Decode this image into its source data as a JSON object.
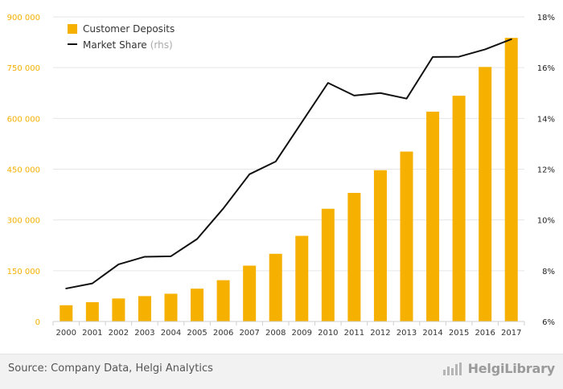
{
  "chart_data": {
    "type": "bar",
    "categories": [
      "2000",
      "2001",
      "2002",
      "2003",
      "2004",
      "2005",
      "2006",
      "2007",
      "2008",
      "2009",
      "2010",
      "2011",
      "2012",
      "2013",
      "2014",
      "2015",
      "2016",
      "2017"
    ],
    "series": [
      {
        "name": "Customer Deposits",
        "type": "bar",
        "axis": "left",
        "color": "#f5b000",
        "values": [
          48000,
          57000,
          68000,
          75000,
          82000,
          97000,
          122000,
          165000,
          200000,
          253000,
          333000,
          380000,
          447000,
          502000,
          620000,
          667000,
          752000,
          838000
        ]
      },
      {
        "name": "Market Share",
        "name_suffix": "(rhs)",
        "type": "line",
        "axis": "right",
        "color": "#111111",
        "values": [
          7.3,
          7.5,
          8.25,
          8.55,
          8.57,
          9.25,
          10.45,
          11.8,
          12.3,
          13.85,
          15.4,
          14.9,
          15.0,
          14.78,
          16.42,
          16.43,
          16.72,
          17.12
        ]
      }
    ],
    "ylim": [
      0,
      900000
    ],
    "y_ticks": [
      0,
      150000,
      300000,
      450000,
      600000,
      750000,
      900000
    ],
    "y_tick_labels": [
      "0",
      "150 000",
      "300 000",
      "450 000",
      "600 000",
      "750 000",
      "900 000"
    ],
    "y2lim": [
      6,
      18
    ],
    "y2_ticks": [
      6,
      8,
      10,
      12,
      14,
      16,
      18
    ],
    "y2_tick_labels": [
      "6%",
      "8%",
      "10%",
      "12%",
      "14%",
      "16%",
      "18%"
    ],
    "grid": "horizontal",
    "legend": "top-left"
  },
  "colors": {
    "left_axis_labels": "#f5b000",
    "right_axis_labels": "#222222",
    "grid": "#e6e6e6"
  },
  "footer": {
    "source": "Source: Company Data, Helgi Analytics",
    "brand": "HelgiLibrary",
    "brand_icon": "bar-chart-logo-icon"
  }
}
